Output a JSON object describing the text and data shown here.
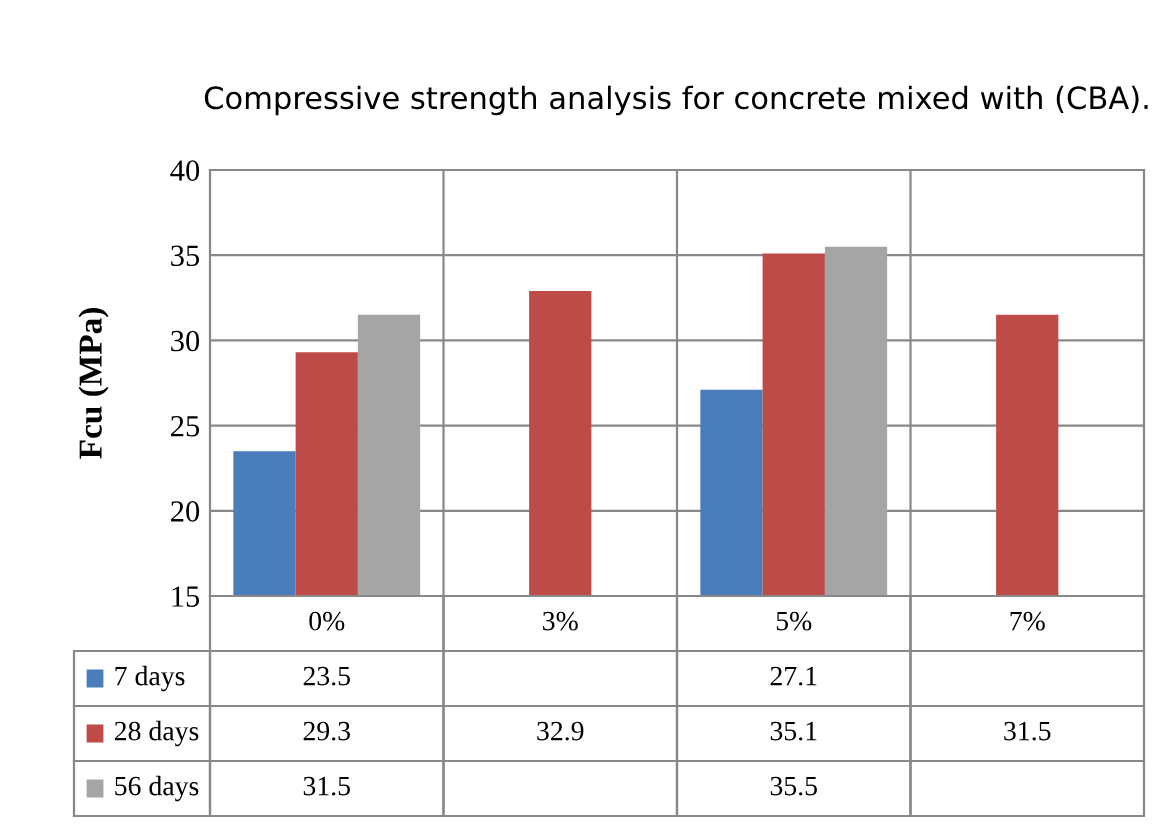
{
  "chart_data": {
    "type": "bar",
    "title": "Compressive strength analysis for concrete mixed with (CBA).",
    "ylabel": "Fcu (MPa)",
    "categories": [
      "0%",
      "3%",
      "5%",
      "7%"
    ],
    "series": [
      {
        "name": "7 days",
        "color": "#4a7ebb",
        "values": [
          23.5,
          null,
          27.1,
          null
        ]
      },
      {
        "name": "28 days",
        "color": "#be4b48",
        "values": [
          29.3,
          32.9,
          35.1,
          31.5
        ]
      },
      {
        "name": "56 days",
        "color": "#a5a5a5",
        "values": [
          31.5,
          null,
          35.5,
          null
        ]
      }
    ],
    "ylim": [
      15,
      40
    ],
    "yticks": [
      15,
      20,
      25,
      30,
      35,
      40
    ],
    "grid": "y",
    "data_labels": true,
    "legend": "bottom left"
  }
}
